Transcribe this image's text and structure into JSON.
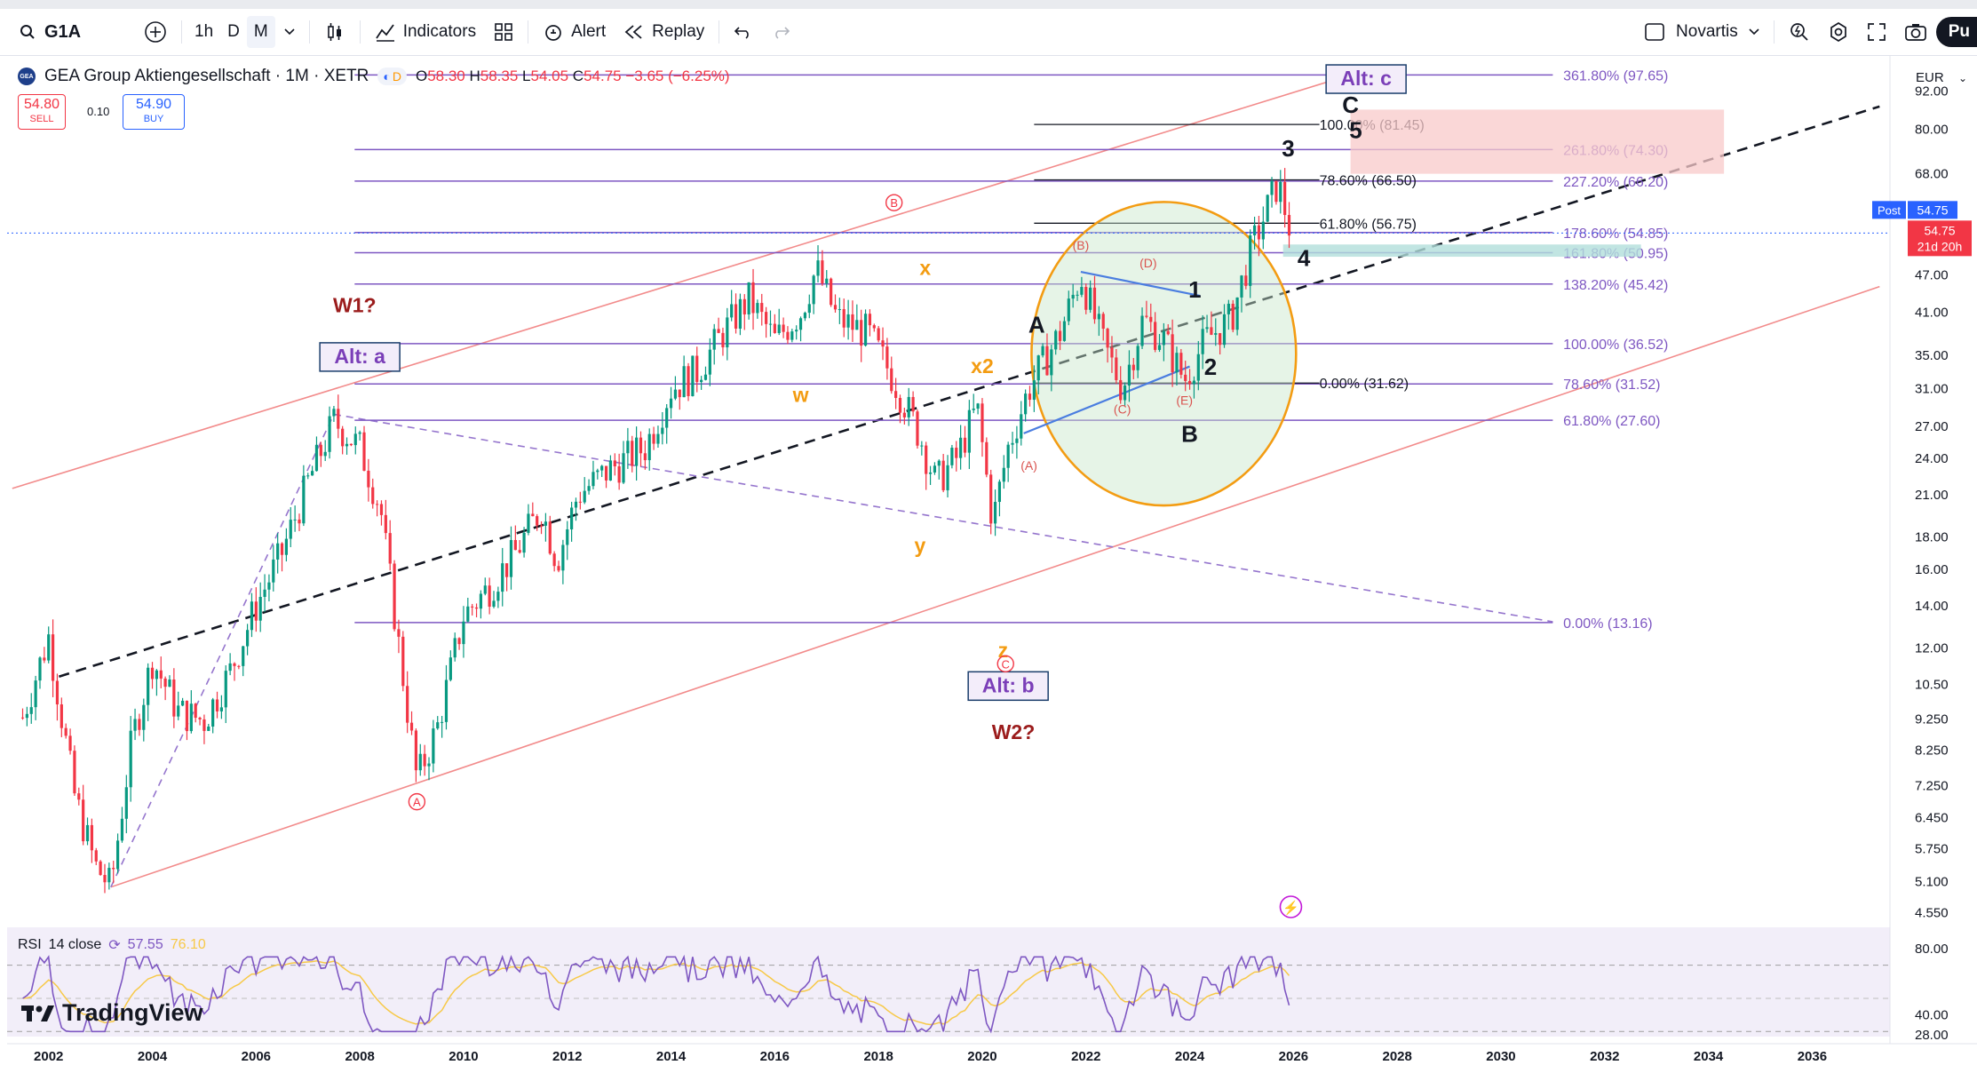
{
  "toolbar": {
    "symbol": "G1A",
    "intervals": [
      "1h",
      "D",
      "M"
    ],
    "active_interval": "M",
    "indicators_label": "Indicators",
    "alert_label": "Alert",
    "replay_label": "Replay",
    "watchlist_name": "Novartis",
    "publish_label": "Pu",
    "currency": "EUR"
  },
  "legend": {
    "title": "GEA Group Aktiengesellschaft · 1M · XETR",
    "logo_text": "GEA",
    "flag": "D",
    "open": "58.30",
    "high": "58.35",
    "low": "54.05",
    "close": "54.75",
    "change": "−3.65 (−6.25%)"
  },
  "trade": {
    "sell_price": "54.80",
    "sell_label": "SELL",
    "spread": "0.10",
    "buy_price": "54.90",
    "buy_label": "BUY"
  },
  "price_badges": {
    "post_label": "Post",
    "post_price": "54.75",
    "last_price": "54.75",
    "countdown": "21d 20h"
  },
  "rsi": {
    "label": "RSI",
    "params": "14 close",
    "value": "57.55",
    "ma_value": "76.10"
  },
  "watermark": "TradingView",
  "colors": {
    "up": "#089981",
    "down": "#f23645",
    "fib": "#7e57c2",
    "channel": "#f28b8b",
    "rsi": "#7e57c2",
    "rsi_ma": "#f7c948"
  },
  "chart_data": {
    "type": "candlestick",
    "title": "GEA Group Aktiengesellschaft · 1M · XETR",
    "scale": "log",
    "ylim": [
      4.4,
      100
    ],
    "x_range": [
      2001.2,
      2037.5
    ],
    "y_ticks": [
      "92.00",
      "80.00",
      "68.00",
      "60.00",
      "47.00",
      "41.00",
      "35.00",
      "31.00",
      "27.00",
      "24.00",
      "21.00",
      "18.00",
      "16.00",
      "14.00",
      "12.00",
      "10.50",
      "9.250",
      "8.250",
      "7.250",
      "6.450",
      "5.750",
      "5.100",
      "4.550"
    ],
    "x_ticks": [
      "2002",
      "2004",
      "2006",
      "2008",
      "2010",
      "2012",
      "2014",
      "2016",
      "2018",
      "2020",
      "2022",
      "2024",
      "2026",
      "2028",
      "2030",
      "2032",
      "2034",
      "2036"
    ],
    "price_path": [
      [
        2001.5,
        9.3
      ],
      [
        2002,
        12.5
      ],
      [
        2002.5,
        7
      ],
      [
        2002.9,
        5.4
      ],
      [
        2003.2,
        5.0
      ],
      [
        2003.6,
        8.5
      ],
      [
        2004,
        11.5
      ],
      [
        2004.5,
        9.5
      ],
      [
        2005,
        9.2
      ],
      [
        2005.5,
        11
      ],
      [
        2006,
        14
      ],
      [
        2006.5,
        17
      ],
      [
        2007,
        22
      ],
      [
        2007.5,
        27.5
      ],
      [
        2008,
        25
      ],
      [
        2008.4,
        20
      ],
      [
        2008.7,
        13
      ],
      [
        2009.1,
        7.4
      ],
      [
        2009.5,
        9
      ],
      [
        2010,
        13.5
      ],
      [
        2010.5,
        15
      ],
      [
        2011,
        17
      ],
      [
        2011.5,
        20
      ],
      [
        2011.8,
        16.5
      ],
      [
        2012.2,
        21
      ],
      [
        2012.8,
        23
      ],
      [
        2013.5,
        25
      ],
      [
        2014,
        31
      ],
      [
        2014.5,
        33
      ],
      [
        2015,
        38
      ],
      [
        2015.5,
        43
      ],
      [
        2016,
        37
      ],
      [
        2016.5,
        41
      ],
      [
        2016.8,
        48
      ],
      [
        2017.2,
        40
      ],
      [
        2017.8,
        38
      ],
      [
        2018.3,
        32
      ],
      [
        2018.8,
        26
      ],
      [
        2019.1,
        22
      ],
      [
        2019.5,
        24
      ],
      [
        2019.9,
        29
      ],
      [
        2020.2,
        19
      ],
      [
        2020.5,
        25
      ],
      [
        2020.9,
        31
      ],
      [
        2021.5,
        38
      ],
      [
        2021.9,
        47
      ],
      [
        2022.3,
        37
      ],
      [
        2022.7,
        31
      ],
      [
        2023.1,
        40
      ],
      [
        2023.5,
        37
      ],
      [
        2023.9,
        32
      ],
      [
        2024.3,
        37
      ],
      [
        2024.8,
        40
      ],
      [
        2025.2,
        52
      ],
      [
        2025.5,
        60
      ],
      [
        2025.7,
        66
      ],
      [
        2025.95,
        54.75
      ]
    ],
    "fib_right": [
      {
        "level": "361.80%",
        "price": 97.65
      },
      {
        "level": "261.80%",
        "price": 74.3
      },
      {
        "level": "227.20%",
        "price": 66.2
      },
      {
        "level": "178.60%",
        "price": 54.85
      },
      {
        "level": "161.80%",
        "price": 50.95
      },
      {
        "level": "138.20%",
        "price": 45.42
      },
      {
        "level": "100.00%",
        "price": 36.52
      },
      {
        "level": "78.60%",
        "price": 31.52
      },
      {
        "level": "61.80%",
        "price": 27.6
      },
      {
        "level": "0.00%",
        "price": 13.16
      }
    ],
    "fib_inner": [
      {
        "level": "100.00%",
        "price": 81.45
      },
      {
        "level": "78.60%",
        "price": 66.5
      },
      {
        "level": "61.80%",
        "price": 56.75
      },
      {
        "level": "0.00%",
        "price": 31.62
      }
    ],
    "labels": [
      {
        "text": "W1?",
        "x": 2007.9,
        "y": 41
      },
      {
        "text": "Alt: a",
        "x": 2008,
        "y": 34
      },
      {
        "text": "W2?",
        "x": 2020.6,
        "y": 8.6
      },
      {
        "text": "Alt: b",
        "x": 2020.5,
        "y": 10.2
      },
      {
        "text": "Alt: c",
        "x": 2027.4,
        "y": 94
      },
      {
        "text": "A",
        "x": 2021.05,
        "y": 38
      },
      {
        "text": "B",
        "x": 2024,
        "y": 25.5
      },
      {
        "text": "C",
        "x": 2027.1,
        "y": 85
      },
      {
        "text": "1",
        "x": 2024.1,
        "y": 43.2
      },
      {
        "text": "2",
        "x": 2024.4,
        "y": 32.6
      },
      {
        "text": "3",
        "x": 2025.9,
        "y": 72.5
      },
      {
        "text": "4",
        "x": 2026.2,
        "y": 48.5
      },
      {
        "text": "5",
        "x": 2027.2,
        "y": 77.5
      },
      {
        "text": "x",
        "x": 2018.9,
        "y": 47
      },
      {
        "text": "x2",
        "x": 2020,
        "y": 32.8
      },
      {
        "text": "w",
        "x": 2016.5,
        "y": 29.5
      },
      {
        "text": "y",
        "x": 2018.8,
        "y": 17
      },
      {
        "text": "z",
        "x": 2020.4,
        "y": 11.6
      },
      {
        "text": "(A)",
        "x": 2020.9,
        "y": 23
      },
      {
        "text": "(B)",
        "x": 2021.9,
        "y": 51.5
      },
      {
        "text": "(C)",
        "x": 2022.7,
        "y": 28.3
      },
      {
        "text": "(D)",
        "x": 2023.2,
        "y": 48.3
      },
      {
        "text": "(E)",
        "x": 2023.9,
        "y": 29.2
      },
      {
        "text": "A",
        "x": 2009.1,
        "y": 6.7
      },
      {
        "text": "B",
        "x": 2018.3,
        "y": 60
      },
      {
        "text": "C",
        "x": 2020.45,
        "y": 11.1
      }
    ],
    "rsi_ylim": [
      28,
      80
    ],
    "rsi_ticks": [
      "80.00",
      "40.00",
      "28.00"
    ]
  }
}
